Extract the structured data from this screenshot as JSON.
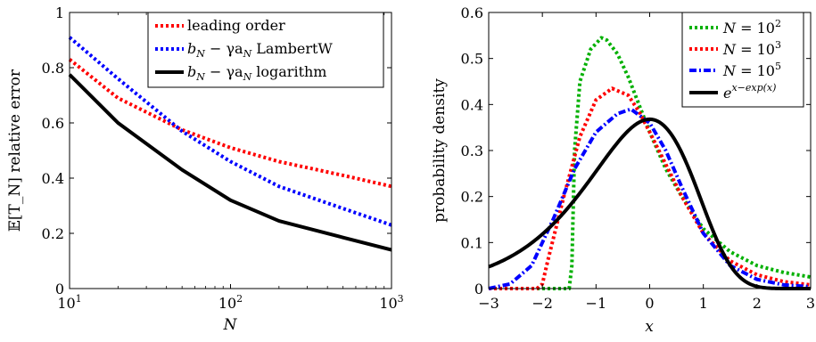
{
  "chart_data": [
    {
      "type": "line",
      "title": "",
      "xlabel": "N",
      "ylabel": "𝔼[T_N] relative error",
      "xscale": "log",
      "xlim": [
        10,
        1000
      ],
      "ylim": [
        0,
        1
      ],
      "xticks": [
        10,
        100,
        1000
      ],
      "xtick_labels": [
        {
          "base": "10",
          "exp": "1"
        },
        {
          "base": "10",
          "exp": "2"
        },
        {
          "base": "10",
          "exp": "3"
        }
      ],
      "yticks": [
        0,
        0.2,
        0.4,
        0.6,
        0.8,
        1
      ],
      "ytick_labels": [
        "0",
        "0.2",
        "0.4",
        "0.6",
        "0.8",
        "1"
      ],
      "grid": false,
      "legend_position": "top-right",
      "series": [
        {
          "name": "leading order",
          "color": "#ff0000",
          "style": "dotted",
          "x": [
            10,
            20,
            50,
            100,
            200,
            500,
            1000
          ],
          "y": [
            0.83,
            0.69,
            0.575,
            0.51,
            0.46,
            0.41,
            0.37
          ]
        },
        {
          "name": "b_N − γa_N LambertW",
          "color": "#0000ff",
          "style": "dotted",
          "x": [
            10,
            20,
            50,
            100,
            200,
            500,
            1000
          ],
          "y": [
            0.91,
            0.76,
            0.57,
            0.46,
            0.37,
            0.29,
            0.23
          ]
        },
        {
          "name": "b_N − γa_N logarithm",
          "color": "#000000",
          "style": "solid",
          "x": [
            10,
            20,
            50,
            100,
            200,
            500,
            1000
          ],
          "y": [
            0.775,
            0.6,
            0.43,
            0.32,
            0.245,
            0.185,
            0.14
          ]
        }
      ]
    },
    {
      "type": "line",
      "title": "",
      "xlabel": "x",
      "ylabel": "probability density",
      "xlim": [
        -3,
        3
      ],
      "ylim": [
        0,
        0.6
      ],
      "xticks": [
        -3,
        -2,
        -1,
        0,
        1,
        2,
        3
      ],
      "xtick_labels": [
        "−3",
        "−2",
        "−1",
        "0",
        "1",
        "2",
        "3"
      ],
      "yticks": [
        0,
        0.1,
        0.2,
        0.3,
        0.4,
        0.5,
        0.6
      ],
      "ytick_labels": [
        "0",
        "0.1",
        "0.2",
        "0.3",
        "0.4",
        "0.5",
        "0.6"
      ],
      "grid": false,
      "legend_position": "top-right",
      "series": [
        {
          "name": "N = 10^2",
          "color": "#00b000",
          "style": "dotted",
          "x": [
            -3,
            -1.5,
            -1.45,
            -1.4,
            -1.3,
            -1.1,
            -0.9,
            -0.8,
            -0.6,
            -0.4,
            -0.2,
            0,
            0.3,
            0.6,
            1,
            1.5,
            2,
            2.5,
            3
          ],
          "y": [
            0,
            0,
            0.05,
            0.3,
            0.45,
            0.52,
            0.545,
            0.54,
            0.51,
            0.46,
            0.4,
            0.34,
            0.26,
            0.2,
            0.13,
            0.08,
            0.05,
            0.035,
            0.025
          ]
        },
        {
          "name": "N = 10^3",
          "color": "#ff0000",
          "style": "dotted",
          "x": [
            -3,
            -2.1,
            -2,
            -1.9,
            -1.6,
            -1.3,
            -1,
            -0.7,
            -0.4,
            -0.2,
            0,
            0.3,
            0.6,
            1,
            1.5,
            2,
            2.5,
            3
          ],
          "y": [
            0,
            0,
            0.01,
            0.06,
            0.2,
            0.33,
            0.41,
            0.435,
            0.42,
            0.385,
            0.34,
            0.27,
            0.2,
            0.12,
            0.06,
            0.03,
            0.015,
            0.008
          ]
        },
        {
          "name": "N = 10^5",
          "color": "#0000ff",
          "style": "dashdot",
          "x": [
            -3,
            -2.6,
            -2.2,
            -1.8,
            -1.4,
            -1,
            -0.6,
            -0.35,
            0,
            0.3,
            0.6,
            1,
            1.5,
            2,
            2.5,
            3
          ],
          "y": [
            0,
            0.01,
            0.05,
            0.15,
            0.26,
            0.34,
            0.38,
            0.39,
            0.36,
            0.3,
            0.22,
            0.12,
            0.05,
            0.02,
            0.008,
            0.004
          ]
        },
        {
          "name": "e^{x−exp(x)}",
          "color": "#000000",
          "style": "solid",
          "function": "exp(x - exp(x))"
        }
      ]
    }
  ],
  "legend_text": {
    "left": {
      "item1": "leading order",
      "item2_sym": "b",
      "item2_sub": "N",
      "item2_mid": " − γa",
      "item2_sub2": "N",
      "item2_tail": " LambertW",
      "item3_tail": " logarithm"
    },
    "right": {
      "n_var": "N",
      "eq": " = 10",
      "exp1": "2",
      "exp2": "3",
      "exp3": "5",
      "gumbel_base": "e",
      "gumbel_exp": "x−exp(x)"
    }
  }
}
